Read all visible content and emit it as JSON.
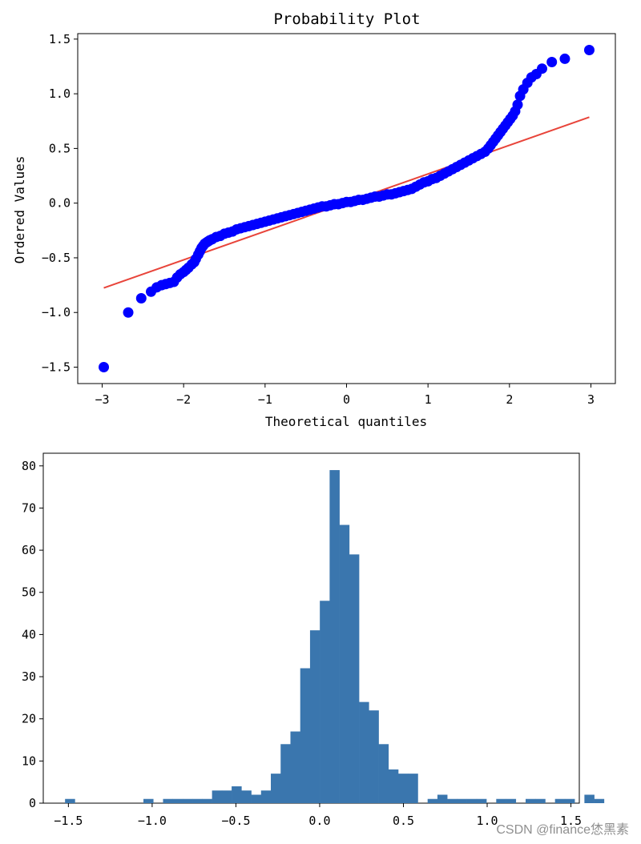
{
  "chart_data": [
    {
      "type": "scatter",
      "title": "Probability Plot",
      "xlabel": "Theoretical quantiles",
      "ylabel": "Ordered Values",
      "xlim": [
        -3.3,
        3.3
      ],
      "ylim": [
        -1.65,
        1.55
      ],
      "x_ticks": [
        -3,
        -2,
        -1,
        0,
        1,
        2,
        3
      ],
      "x_tick_labels": [
        "−3",
        "−2",
        "−1",
        "0",
        "1",
        "2",
        "3"
      ],
      "y_ticks": [
        -1.5,
        -1.0,
        -0.5,
        0.0,
        0.5,
        1.0,
        1.5
      ],
      "y_tick_labels": [
        "−1.5",
        "−1.0",
        "−0.5",
        "0.0",
        "0.5",
        "1.0",
        "1.5"
      ],
      "point_color": "#0000ff",
      "line_color": "#e8443a",
      "fit_line": {
        "slope": 0.262,
        "intercept": 0.005,
        "x": [
          -2.98,
          2.98
        ]
      },
      "series": [
        {
          "name": "Ordered Values",
          "x": [
            -2.98,
            -2.68,
            -2.52,
            -2.4,
            -2.33,
            -2.27,
            -2.22,
            -2.17,
            -2.12,
            -2.08,
            -2.04,
            -2.0,
            -1.97,
            -1.94,
            -1.9,
            -1.87,
            -1.85,
            -1.82,
            -1.8,
            -1.78,
            -1.76,
            -1.74,
            -1.72,
            -1.7,
            -1.68,
            -1.65,
            -1.6,
            -1.55,
            -1.5,
            -1.45,
            -1.4,
            -1.35,
            -1.3,
            -1.25,
            -1.2,
            -1.15,
            -1.1,
            -1.05,
            -1.0,
            -0.95,
            -0.9,
            -0.85,
            -0.8,
            -0.75,
            -0.7,
            -0.65,
            -0.6,
            -0.55,
            -0.5,
            -0.45,
            -0.4,
            -0.35,
            -0.3,
            -0.25,
            -0.2,
            -0.15,
            -0.1,
            -0.05,
            0.0,
            0.05,
            0.1,
            0.15,
            0.2,
            0.25,
            0.3,
            0.35,
            0.4,
            0.45,
            0.5,
            0.55,
            0.6,
            0.65,
            0.7,
            0.75,
            0.8,
            0.85,
            0.9,
            0.95,
            1.0,
            1.05,
            1.1,
            1.15,
            1.2,
            1.25,
            1.3,
            1.35,
            1.4,
            1.45,
            1.5,
            1.55,
            1.6,
            1.65,
            1.7,
            1.74,
            1.77,
            1.8,
            1.83,
            1.86,
            1.89,
            1.92,
            1.95,
            1.98,
            2.01,
            2.04,
            2.07,
            2.1,
            2.13,
            2.17,
            2.22,
            2.27,
            2.33,
            2.4,
            2.52,
            2.68,
            2.98
          ],
          "y": [
            -1.5,
            -1.0,
            -0.87,
            -0.81,
            -0.77,
            -0.75,
            -0.74,
            -0.73,
            -0.72,
            -0.68,
            -0.65,
            -0.63,
            -0.61,
            -0.59,
            -0.56,
            -0.54,
            -0.51,
            -0.47,
            -0.44,
            -0.41,
            -0.39,
            -0.37,
            -0.36,
            -0.35,
            -0.34,
            -0.33,
            -0.31,
            -0.3,
            -0.28,
            -0.27,
            -0.26,
            -0.24,
            -0.23,
            -0.22,
            -0.21,
            -0.2,
            -0.19,
            -0.18,
            -0.17,
            -0.16,
            -0.15,
            -0.14,
            -0.13,
            -0.12,
            -0.11,
            -0.1,
            -0.09,
            -0.08,
            -0.07,
            -0.06,
            -0.05,
            -0.04,
            -0.03,
            -0.03,
            -0.02,
            -0.01,
            -0.01,
            0.0,
            0.01,
            0.01,
            0.02,
            0.03,
            0.03,
            0.04,
            0.05,
            0.06,
            0.06,
            0.07,
            0.08,
            0.08,
            0.09,
            0.1,
            0.11,
            0.12,
            0.13,
            0.15,
            0.17,
            0.19,
            0.2,
            0.22,
            0.23,
            0.25,
            0.27,
            0.29,
            0.31,
            0.33,
            0.35,
            0.37,
            0.39,
            0.41,
            0.43,
            0.45,
            0.47,
            0.5,
            0.53,
            0.56,
            0.59,
            0.62,
            0.65,
            0.68,
            0.71,
            0.74,
            0.77,
            0.8,
            0.84,
            0.9,
            0.98,
            1.04,
            1.1,
            1.15,
            1.18,
            1.23,
            1.29,
            1.32,
            1.4
          ]
        }
      ]
    },
    {
      "type": "bar",
      "title": "",
      "xlabel": "",
      "ylabel": "",
      "bar_color": "#3a76ae",
      "xlim": [
        -1.65,
        1.55
      ],
      "ylim": [
        0,
        83
      ],
      "x_ticks": [
        -1.5,
        -1.0,
        -0.5,
        0.0,
        0.5,
        1.0,
        1.5
      ],
      "x_tick_labels": [
        "−1.5",
        "−1.0",
        "−0.5",
        "0.0",
        "0.5",
        "1.0",
        "1.5"
      ],
      "y_ticks": [
        0,
        10,
        20,
        30,
        40,
        50,
        60,
        70,
        80
      ],
      "y_tick_labels": [
        "0",
        "10",
        "20",
        "30",
        "40",
        "50",
        "60",
        "70",
        "80"
      ],
      "bin_start": -1.52,
      "bin_width": 0.0585,
      "values": [
        1,
        0,
        0,
        0,
        0,
        0,
        0,
        0,
        1,
        0,
        1,
        1,
        1,
        1,
        1,
        3,
        3,
        4,
        3,
        2,
        3,
        7,
        14,
        17,
        32,
        41,
        48,
        79,
        66,
        59,
        24,
        22,
        14,
        8,
        7,
        7,
        0,
        1,
        2,
        1,
        1,
        1,
        1,
        0,
        1,
        1,
        0,
        1,
        1,
        0,
        1,
        1,
        0,
        2,
        1
      ]
    }
  ],
  "watermark": "CSDN @finance恷黑素"
}
